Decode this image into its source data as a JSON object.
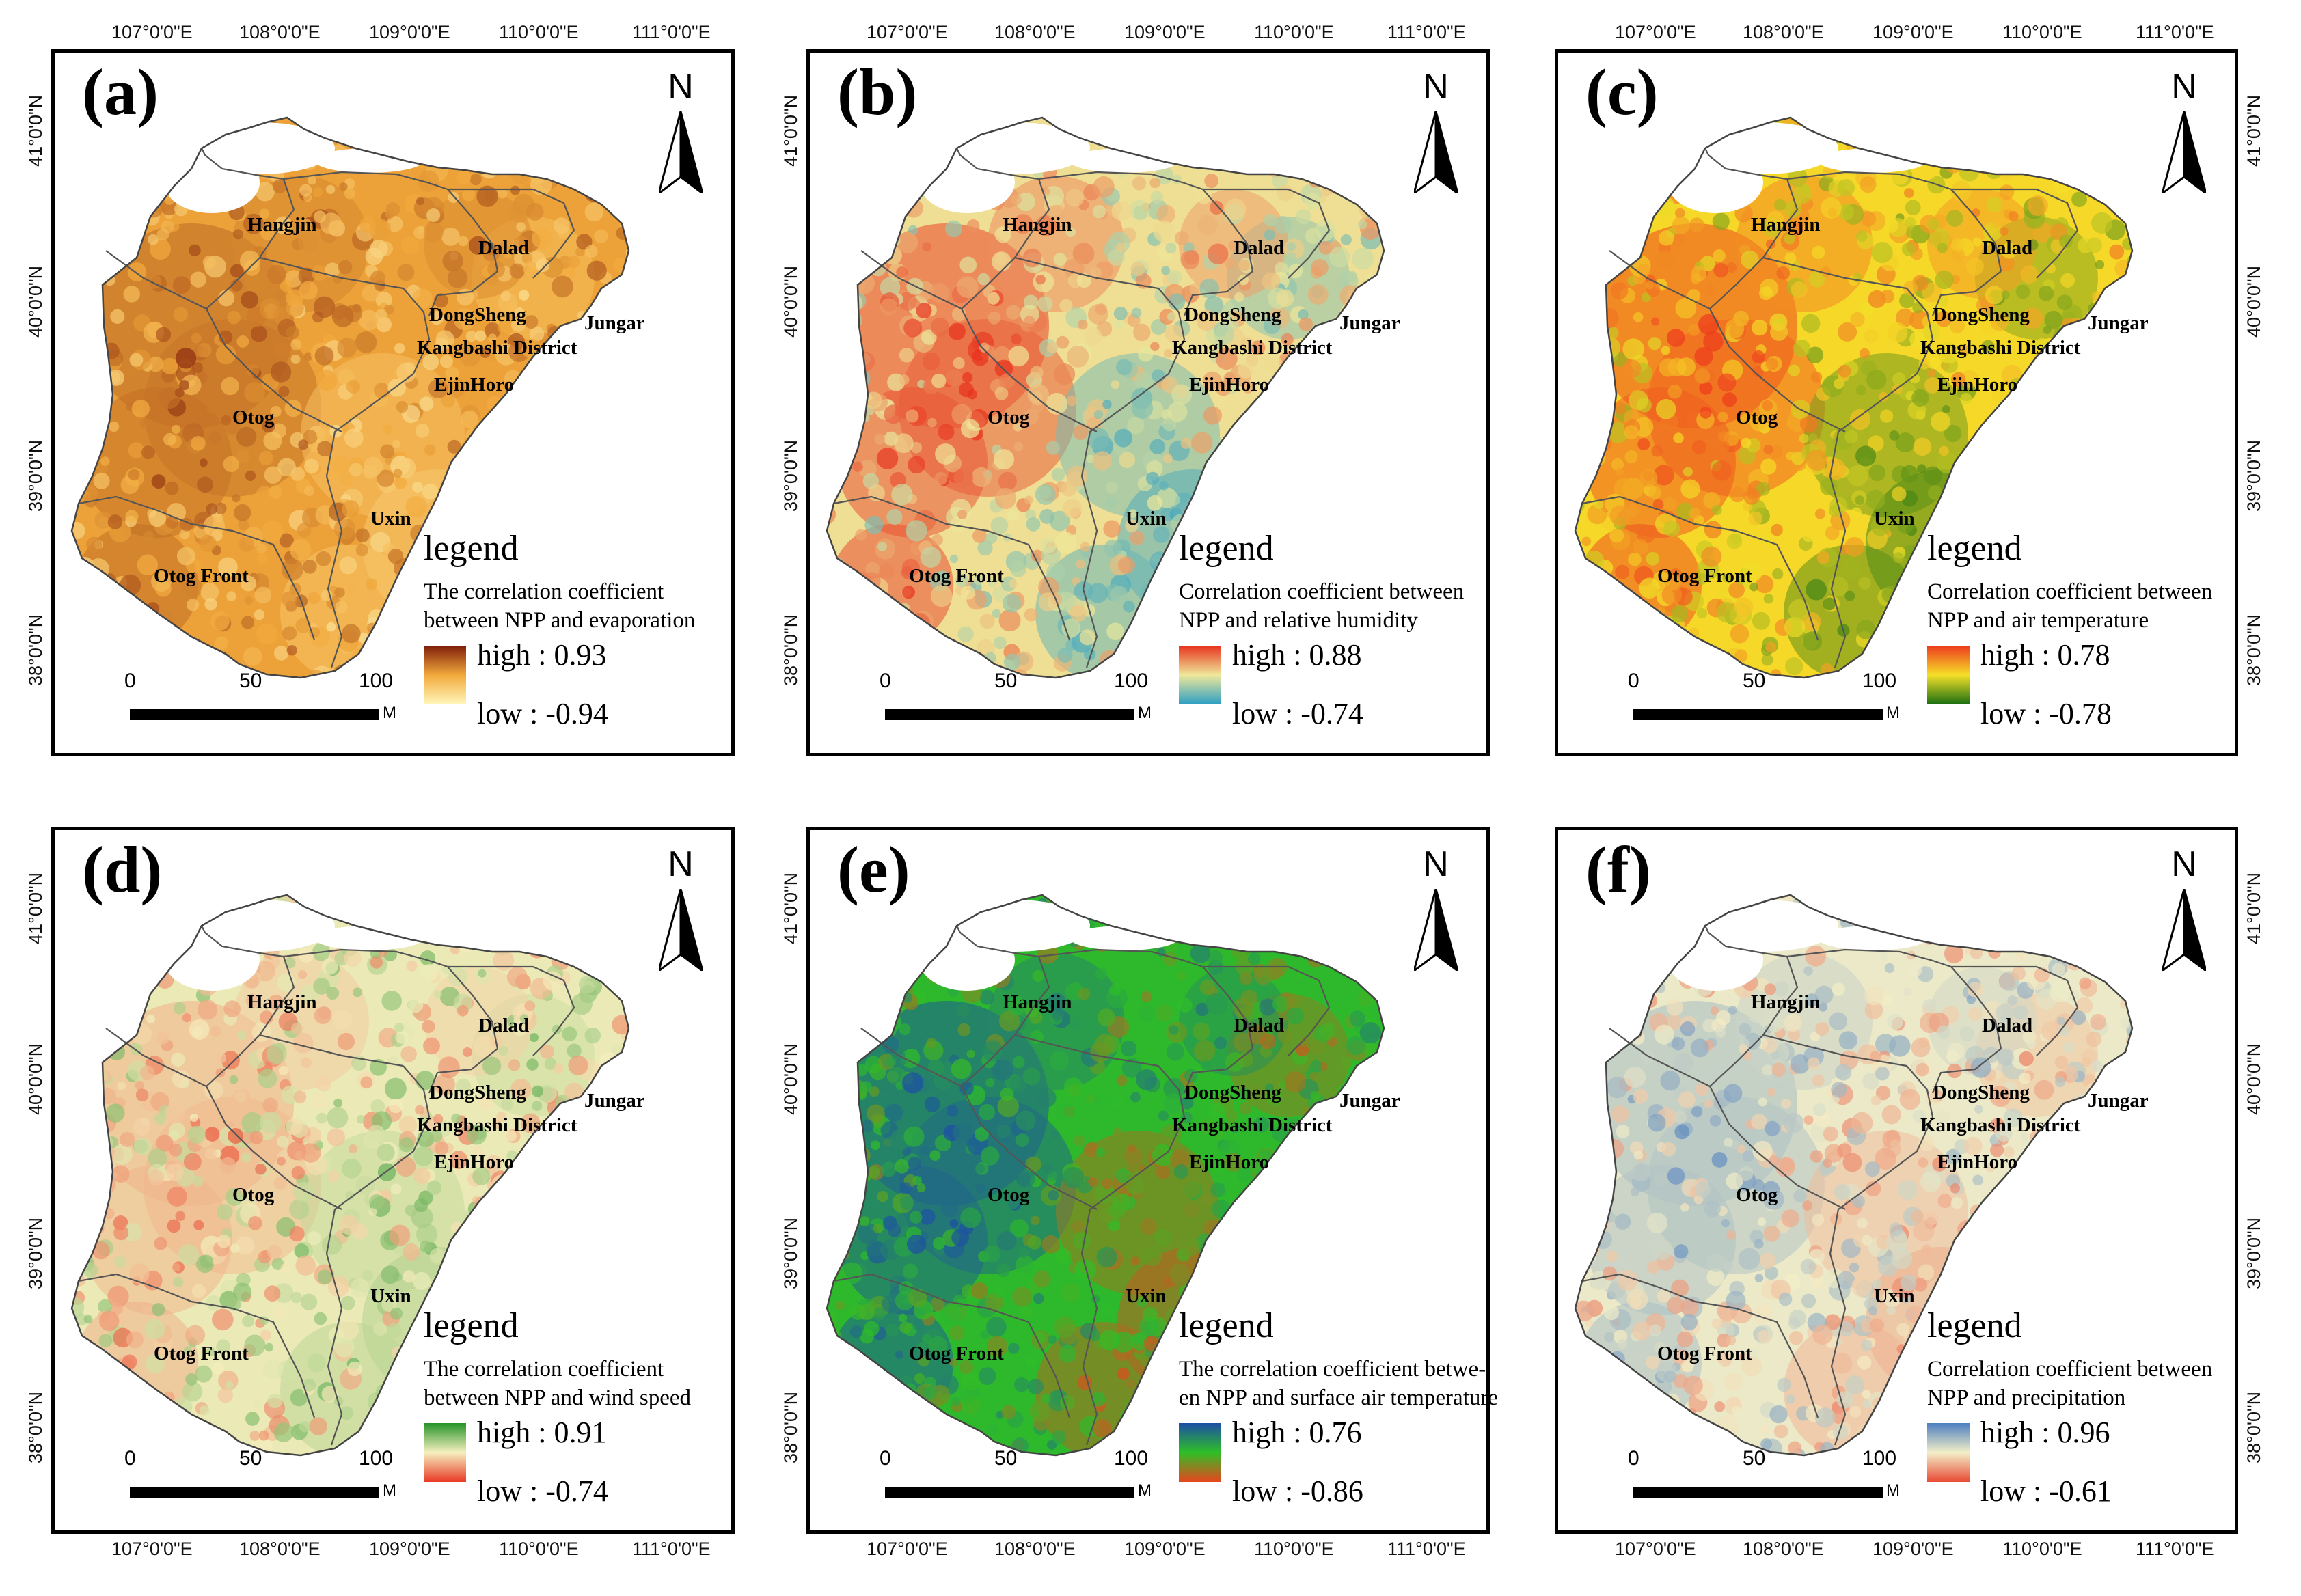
{
  "axes": {
    "longitude": [
      "107°0'0\"E",
      "108°0'0\"E",
      "109°0'0\"E",
      "110°0'0\"E",
      "111°0'0\"E"
    ],
    "latitude": [
      "41°0'0\"N",
      "40°0'0\"N",
      "39°0'0\"N",
      "38°0'0\"N"
    ]
  },
  "regions": {
    "hangjin": "Hangjin",
    "dalad": "Dalad",
    "dongsheng": "DongSheng",
    "jungar": "Jungar",
    "kangbashi": "Kangbashi District",
    "ejinhoro": "EjinHoro",
    "otog": "Otog",
    "uxin": "Uxin",
    "otog_front": "Otog Front"
  },
  "north_label": "N",
  "legend_title": "legend",
  "scale": {
    "zero": "0",
    "mid": "50",
    "end": "100",
    "unit": "M"
  },
  "panels": [
    {
      "id": "a",
      "label": "(a)",
      "desc1": "The correlation coefficient",
      "desc2": "between NPP and evaporation",
      "high": "high : 0.93",
      "low": "low : -0.94",
      "colors": {
        "low": "#fff7bc",
        "mid": "#f2a93b",
        "high": "#7f1d0a"
      }
    },
    {
      "id": "b",
      "label": "(b)",
      "desc1": "Correlation coefficient between",
      "desc2": "NPP and relative humidity",
      "high": "high : 0.88",
      "low": "low : -0.74",
      "colors": {
        "low": "#2c9ec4",
        "mid": "#efe89a",
        "high": "#e8321e"
      }
    },
    {
      "id": "c",
      "label": "(c)",
      "desc1": "Correlation coefficient between",
      "desc2": "NPP and air temperature",
      "high": "high : 0.78",
      "low": "low : -0.78",
      "colors": {
        "low": "#1a6e12",
        "mid": "#f5e028",
        "high": "#ee3a1e"
      }
    },
    {
      "id": "d",
      "label": "(d)",
      "desc1": "The correlation coefficient",
      "desc2": "between NPP and wind speed",
      "high": "high : 0.91",
      "low": "low : -0.74",
      "colors": {
        "low": "#e93a26",
        "mid": "#f5efbe",
        "high": "#27942a"
      }
    },
    {
      "id": "e",
      "label": "(e)",
      "desc1": "The correlation coefficient betwe-",
      "desc2": "en NPP and surface air temperature",
      "high": "high : 0.76",
      "low": "low : -0.86",
      "colors": {
        "low": "#e8451e",
        "mid": "#2fbf26",
        "high": "#1c4fa6"
      }
    },
    {
      "id": "f",
      "label": "(f)",
      "desc1": "Correlation coefficient between",
      "desc2": "NPP and precipitation",
      "high": "high : 0.96",
      "low": "low : -0.61",
      "colors": {
        "low": "#e94a35",
        "mid": "#f3efc8",
        "high": "#4d7fc0"
      }
    }
  ]
}
